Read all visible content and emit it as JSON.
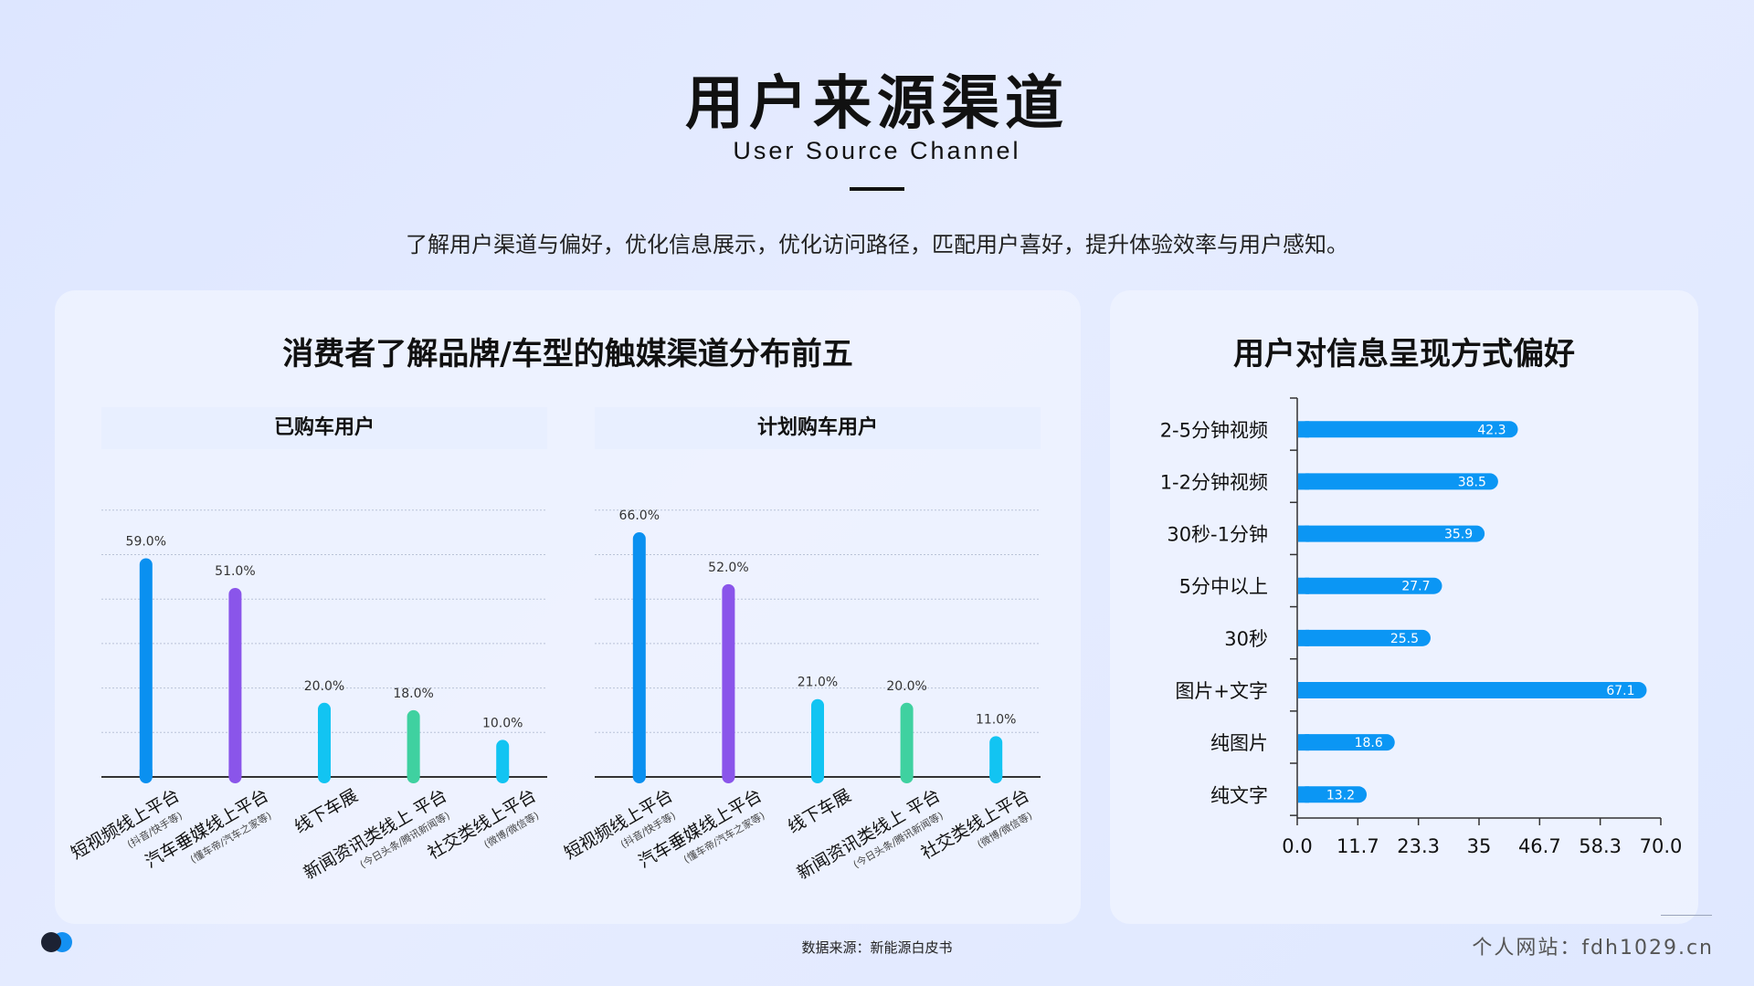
{
  "header": {
    "title": "用户来源渠道",
    "subtitle": "User Source Channel",
    "description": "了解用户渠道与偏好，优化信息展示，优化访问路径，匹配用户喜好，提升体验效率与用户感知。"
  },
  "left_card": {
    "title": "消费者了解品牌/车型的触媒渠道分布前五"
  },
  "right_card": {
    "title": "用户对信息呈现方式偏好"
  },
  "footer": {
    "source": "数据来源：新能源白皮书",
    "site": "个人网站：fdh1029.cn"
  },
  "colors": {
    "blue": "#0a90f0",
    "purple": "#8a55ea",
    "cyan": "#12c4f2",
    "green": "#3fd1a0",
    "hbar": "#0b96f4"
  },
  "chart_data": [
    {
      "type": "bar",
      "title": "已购车用户",
      "categories": [
        "短视频线上平台",
        "汽车垂媒线上平台",
        "线下车展",
        "新闻资讯类线上 平台",
        "社交类线上平台"
      ],
      "category_notes": [
        "(抖音/快手等)",
        "(懂车帝/汽车之家等)",
        "",
        "(今日头条/腾讯新闻等)",
        "(微博/微信等)"
      ],
      "values": [
        59.0,
        51.0,
        20.0,
        18.0,
        10.0
      ],
      "value_labels": [
        "59.0%",
        "51.0%",
        "20.0%",
        "18.0%",
        "10.0%"
      ],
      "bar_colors": [
        "#0a90f0",
        "#8a55ea",
        "#12c4f2",
        "#3fd1a0",
        "#12c4f2"
      ],
      "ylim": [
        0,
        60
      ],
      "grid": true
    },
    {
      "type": "bar",
      "title": "计划购车用户",
      "categories": [
        "短视频线上平台",
        "汽车垂媒线上平台",
        "线下车展",
        "新闻资讯类线上 平台",
        "社交类线上平台"
      ],
      "category_notes": [
        "(抖音/快手等)",
        "(懂车帝/汽车之家等)",
        "",
        "(今日头条/腾讯新闻等)",
        "(微博/微信等)"
      ],
      "values": [
        66.0,
        52.0,
        21.0,
        20.0,
        11.0
      ],
      "value_labels": [
        "66.0%",
        "52.0%",
        "21.0%",
        "20.0%",
        "11.0%"
      ],
      "bar_colors": [
        "#0a90f0",
        "#8a55ea",
        "#12c4f2",
        "#3fd1a0",
        "#12c4f2"
      ],
      "ylim": [
        0,
        60
      ],
      "grid": true
    },
    {
      "type": "bar",
      "orientation": "horizontal",
      "categories": [
        "2-5分钟视频",
        "1-2分钟视频",
        "30秒-1分钟",
        "5分中以上",
        "30秒",
        "图片+文字",
        "纯图片",
        "纯文字"
      ],
      "values": [
        42.3,
        38.5,
        35.9,
        27.7,
        25.5,
        67.1,
        18.6,
        13.2
      ],
      "value_labels": [
        "42.3",
        "38.5",
        "35.9",
        "27.7",
        "25.5",
        "67.1",
        "18.6",
        "13.2"
      ],
      "xticks": [
        "0.0",
        "11.7",
        "23.3",
        "35",
        "46.7",
        "58.3",
        "70.0"
      ],
      "xlim": [
        0,
        70
      ],
      "grid": false
    }
  ]
}
